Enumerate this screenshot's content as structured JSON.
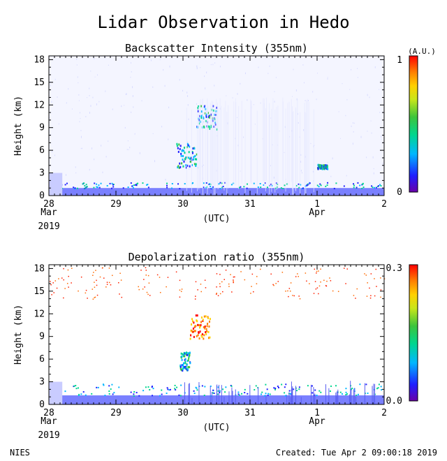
{
  "title": "Lidar Observation in Hedo",
  "footer": {
    "left": "NIES",
    "right": "Created: Tue Apr  2 09:00:18 2019"
  },
  "colors": {
    "colorbar": [
      "#6a00a8",
      "#1f1fff",
      "#00b7ff",
      "#00d68f",
      "#3cc43c",
      "#c8e61a",
      "#ffd000",
      "#ff8000",
      "#ff0000"
    ],
    "low_signal": "#c9ccff",
    "surface_layer": "#7a80ff"
  },
  "chart_data": [
    {
      "type": "heatmap",
      "title": "Backscatter Intensity (355nm)",
      "xlabel": "(UTC)",
      "ylabel": "Height (km)",
      "x_ticks": [
        "28",
        "29",
        "30",
        "31",
        "1",
        "2"
      ],
      "x_sub": [
        "Mar",
        "",
        "",
        "",
        "Apr",
        ""
      ],
      "x_year": "2019",
      "y_ticks": [
        "0",
        "3",
        "6",
        "9",
        "12",
        "15",
        "18"
      ],
      "ylim": [
        0,
        18.5
      ],
      "colorbar": {
        "unit": "(A.U.)",
        "min_label": "0",
        "max_label": "1"
      },
      "features": [
        {
          "name": "boundary layer",
          "day_start": 28.0,
          "day_end": 33.0,
          "height_km": [
            0,
            1.0
          ]
        },
        {
          "name": "rising cloud",
          "day_start": 29.9,
          "day_end": 30.2,
          "height_km": [
            3,
            7
          ]
        },
        {
          "name": "upper cloud",
          "day_start": 30.2,
          "day_end": 30.5,
          "height_km": [
            8,
            12
          ]
        },
        {
          "name": "thin cloud",
          "day_start": 32.0,
          "day_end": 32.15,
          "height_km": [
            3.5,
            4.2
          ]
        }
      ]
    },
    {
      "type": "heatmap",
      "title": "Depolarization ratio (355nm)",
      "xlabel": "(UTC)",
      "ylabel": "Height (km)",
      "x_ticks": [
        "28",
        "29",
        "30",
        "31",
        "1",
        "2"
      ],
      "x_sub": [
        "Mar",
        "",
        "",
        "",
        "Apr",
        ""
      ],
      "x_year": "2019",
      "y_ticks": [
        "0",
        "3",
        "6",
        "9",
        "12",
        "15",
        "18"
      ],
      "ylim": [
        0,
        18.5
      ],
      "colorbar": {
        "min_label": "0.0",
        "max_label": "0.3"
      },
      "features": [
        {
          "name": "boundary layer",
          "day_start": 28.0,
          "day_end": 33.0,
          "height_km": [
            0,
            1.2
          ]
        },
        {
          "name": "ice cloud",
          "day_start": 30.1,
          "day_end": 30.4,
          "height_km": [
            8,
            12
          ]
        },
        {
          "name": "rising cloud",
          "day_start": 29.95,
          "day_end": 30.1,
          "height_km": [
            4,
            7
          ]
        }
      ]
    }
  ]
}
